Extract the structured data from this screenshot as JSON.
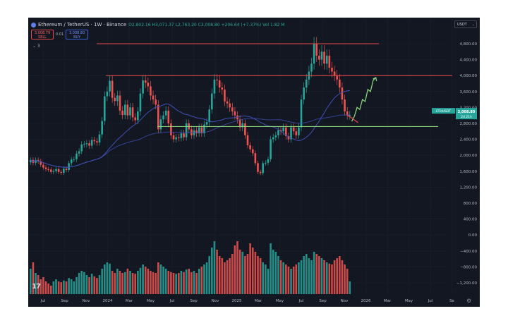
{
  "header": {
    "symbol": "Ethereum / TetherUS · 1W · Binance",
    "open": "O2,802.16",
    "high": "H3,071.37",
    "low": "L2,763.20",
    "close": "C3,008.80",
    "change": "+206.64 (+7.37%)",
    "volume": "Vol 1.82 M"
  },
  "trade": {
    "sell_price": "3,008.79",
    "sell_label": "SELL",
    "spread": "0.01",
    "buy_price": "3,008.80",
    "buy_label": "BUY"
  },
  "indicator_toggle": "⌄ 3",
  "currency": "USDT",
  "logo_text": "17",
  "price_tag": {
    "symbol": "ETHUSDT",
    "price": "3,008.80",
    "countdown": "2d 21h"
  },
  "price_axis": [
    "4,800.00",
    "4,400.00",
    "4,000.00",
    "3,600.00",
    "3,200.00",
    "2,800.00",
    "2,400.00",
    "2,000.00",
    "1,600.00",
    "1,200.00",
    "800.00",
    "400.00",
    "0.00",
    "−400.00",
    "−800.00",
    "−1,200.00"
  ],
  "time_axis": [
    "Jul",
    "Sep",
    "Nov",
    "2024",
    "Mar",
    "May",
    "Jul",
    "Sep",
    "Nov",
    "2025",
    "Mar",
    "May",
    "Jul",
    "Sep",
    "Nov",
    "2026",
    "Mar",
    "May",
    "Jul",
    "Se"
  ],
  "colors": {
    "up": "#26a69a",
    "down": "#ef5350",
    "resistance": "#e04848",
    "support": "#8bd17a",
    "ma": "#3f51b5",
    "projection": "#8bd17a",
    "background": "#131722"
  },
  "chart_data": {
    "type": "candlestick",
    "interval": "1W",
    "ylim": [
      -1200,
      5000
    ],
    "levels": [
      4800,
      4000,
      2720
    ],
    "closes": [
      1880,
      1810,
      1880,
      1850,
      1760,
      1690,
      1650,
      1640,
      1580,
      1600,
      1650,
      1580,
      1560,
      1660,
      1630,
      1800,
      1890,
      1900,
      2040,
      2100,
      2270,
      2280,
      2300,
      2240,
      2380,
      2350,
      2320,
      2520,
      2860,
      3480,
      3600,
      3870,
      3440,
      3360,
      3500,
      3120,
      3010,
      3270,
      3000,
      3200,
      2950,
      2880,
      3100,
      3550,
      3880,
      3820,
      3730,
      3500,
      3400,
      3270,
      2650,
      2900,
      3000,
      3120,
      2800,
      2500,
      2400,
      2450,
      2430,
      2550,
      2450,
      2800,
      2650,
      2500,
      2620,
      2550,
      2700,
      2550,
      2770,
      2830,
      3150,
      3550,
      3900,
      3880,
      3700,
      3650,
      3350,
      3300,
      3200,
      3100,
      3000,
      2900,
      2700,
      2800,
      2500,
      2250,
      2150,
      2050,
      1800,
      1580,
      1550,
      1800,
      1810,
      1900,
      2400,
      2450,
      2500,
      2630,
      2600,
      2700,
      2480,
      2400,
      2700,
      2600,
      2500,
      2700,
      3400,
      3700,
      3900,
      4100,
      4300,
      4800,
      4500,
      4400,
      4600,
      4300,
      4500,
      4200,
      4100,
      4000,
      3900,
      3700,
      3400,
      3100,
      3000,
      3009
    ],
    "volume": [
      600,
      750,
      500,
      450,
      350,
      400,
      300,
      250,
      200,
      300,
      350,
      300,
      280,
      320,
      300,
      380,
      350,
      300,
      400,
      500,
      550,
      520,
      450,
      400,
      480,
      420,
      380,
      450,
      600,
      700,
      750,
      720,
      550,
      500,
      600,
      550,
      500,
      520,
      600,
      550,
      500,
      480,
      550,
      620,
      700,
      650,
      600,
      550,
      520,
      500,
      750,
      700,
      650,
      600,
      550,
      520,
      500,
      480,
      500,
      550,
      520,
      580,
      600,
      520,
      550,
      500,
      600,
      650,
      700,
      750,
      900,
      1100,
      1250,
      1050,
      900,
      850,
      750,
      800,
      850,
      950,
      1150,
      1250,
      1050,
      1000,
      900,
      950,
      1200,
      1100,
      1000,
      900,
      850,
      750,
      700,
      600,
      1200,
      1050,
      1000,
      900,
      800,
      750,
      700,
      650,
      600,
      650,
      700,
      750,
      800,
      900,
      950,
      850,
      800,
      1000,
      950,
      900,
      850,
      800,
      750,
      720,
      700,
      800,
      850,
      900,
      800,
      700,
      600,
      300
    ],
    "projection": [
      2850,
      2980,
      3200,
      3150,
      3400,
      3350,
      3650,
      3600,
      3880,
      3950
    ],
    "projection_down": [
      3000,
      2950,
      2880,
      2820
    ]
  }
}
